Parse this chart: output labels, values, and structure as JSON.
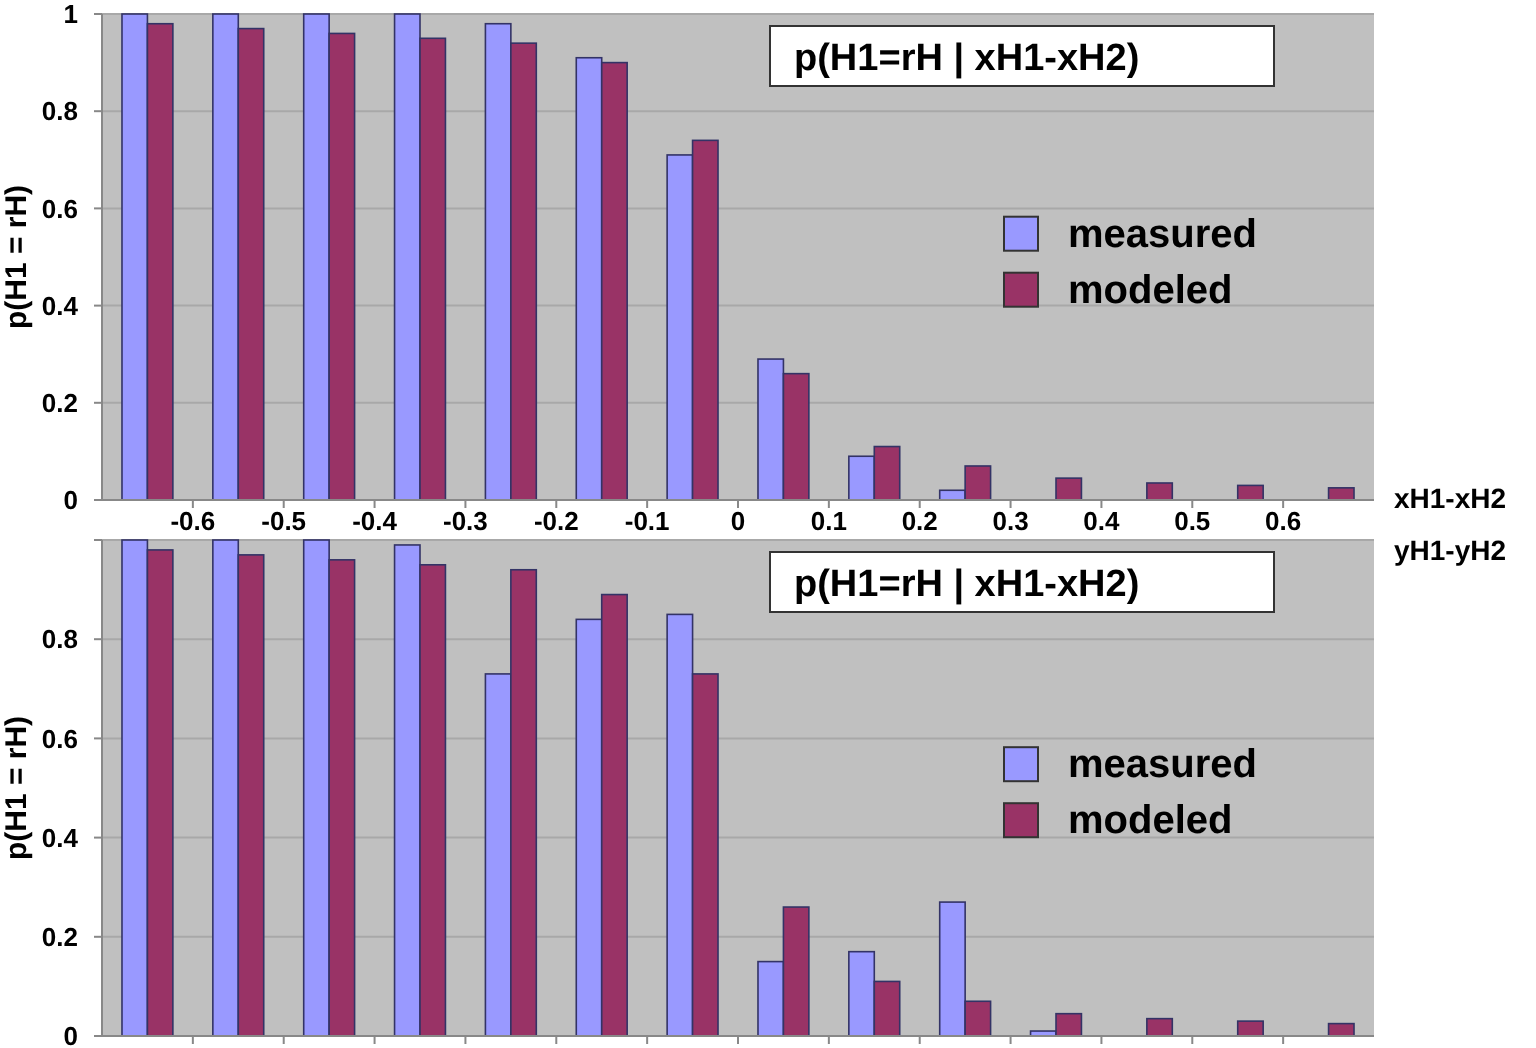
{
  "chart_data": [
    {
      "type": "bar",
      "title": "p(H1=rH | xH1-xH2)",
      "xlabel": "xH1-xH2",
      "ylabel": "p(H1 = rH)",
      "x": [
        -0.65,
        -0.55,
        -0.45,
        -0.35,
        -0.25,
        -0.15,
        -0.05,
        0.05,
        0.15,
        0.25,
        0.35,
        0.45,
        0.55,
        0.65
      ],
      "xlim": [
        -0.7,
        0.7
      ],
      "xticks": [
        -0.6,
        -0.5,
        -0.4,
        -0.3,
        -0.2,
        -0.1,
        0,
        0.1,
        0.2,
        0.3,
        0.4,
        0.5,
        0.6
      ],
      "ylim": [
        0,
        1
      ],
      "yticks": [
        0,
        0.2,
        0.4,
        0.6,
        0.8,
        1
      ],
      "grid": "y",
      "legend": "right",
      "series": [
        {
          "name": "measured",
          "color": "#9999ff",
          "values": [
            1,
            1,
            1,
            1,
            0.98,
            0.91,
            0.71,
            0.29,
            0.09,
            0.02,
            0,
            0,
            0,
            0
          ]
        },
        {
          "name": "modeled",
          "color": "#993366",
          "values": [
            0.98,
            0.97,
            0.96,
            0.95,
            0.94,
            0.9,
            0.74,
            0.26,
            0.11,
            0.07,
            0.045,
            0.035,
            0.03,
            0.025
          ]
        }
      ]
    },
    {
      "type": "bar",
      "title": "p(H1=rH | xH1-xH2)",
      "xlabel": "yH1-yH2",
      "ylabel": "p(H1 = rH)",
      "x": [
        -0.65,
        -0.55,
        -0.45,
        -0.35,
        -0.25,
        -0.15,
        -0.05,
        0.05,
        0.15,
        0.25,
        0.35,
        0.45,
        0.55,
        0.65
      ],
      "xlim": [
        -0.7,
        0.7
      ],
      "xticks": [
        -0.6,
        -0.5,
        -0.4,
        -0.3,
        -0.2,
        -0.1,
        0,
        0.1,
        0.2,
        0.3,
        0.4,
        0.5,
        0.6
      ],
      "ylim": [
        0,
        1
      ],
      "yticks": [
        0,
        0.2,
        0.4,
        0.6,
        0.8,
        {
          "value": 1,
          "label": null
        }
      ],
      "grid": "y",
      "legend": "right",
      "tick_labels": "y",
      "series": [
        {
          "name": "measured",
          "color": "#9999ff",
          "values": [
            1,
            1,
            1,
            0.99,
            0.73,
            0.84,
            0.85,
            0.15,
            0.17,
            0.27,
            0.01,
            0,
            0,
            0
          ]
        },
        {
          "name": "modeled",
          "color": "#993366",
          "values": [
            0.98,
            0.97,
            0.96,
            0.95,
            0.94,
            0.89,
            0.73,
            0.26,
            0.11,
            0.07,
            0.045,
            0.035,
            0.03,
            0.025
          ]
        }
      ]
    }
  ]
}
